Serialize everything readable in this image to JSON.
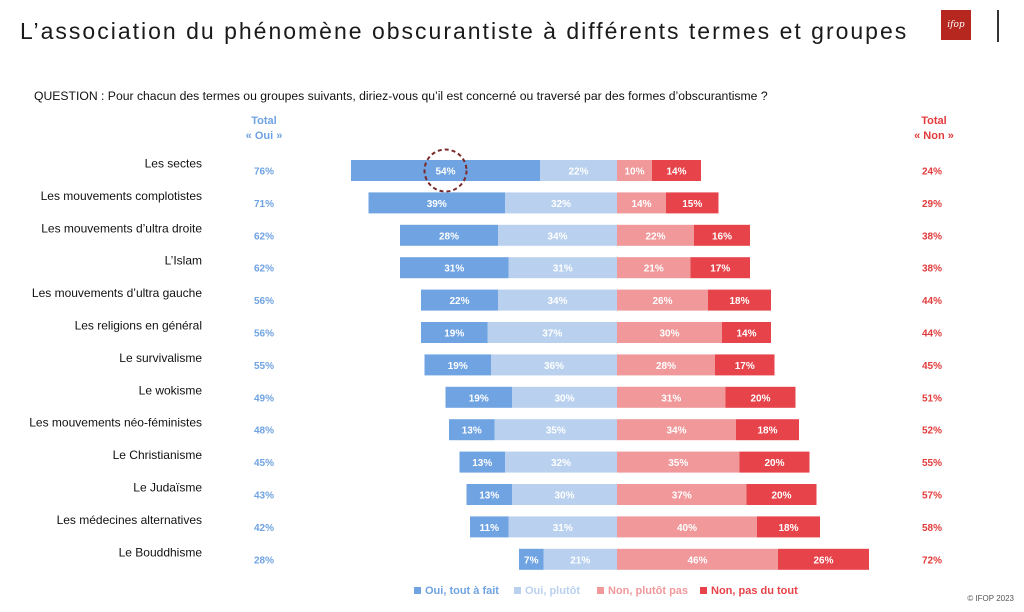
{
  "title": "L’association du phénomène obscurantiste à différents termes et groupes",
  "question": "QUESTION : Pour chacun des termes ou groupes suivants, diriez-vous qu’il est concerné ou traversé par des formes d’obscurantisme ?",
  "logo_text": "ifop",
  "copyright": "© IFOP 2023",
  "colors": {
    "oui_tout": "#6fa3e2",
    "oui_plutot": "#b9d1ef",
    "non_plutot": "#f0989a",
    "non_pas": "#e6434a",
    "total_oui_text": "#6fa3e2",
    "total_non_text": "#e23b3b",
    "highlight_circle": "#7a2a2a"
  },
  "chart_data": {
    "type": "bar",
    "stacked": "diverging",
    "categories": [
      "Les sectes",
      "Les mouvements complotistes",
      "Les mouvements d’ultra droite",
      "L’Islam",
      "Les mouvements d’ultra gauche",
      "Les religions en général",
      "Le survivalisme",
      "Le wokisme",
      "Les mouvements néo-féministes",
      "Le Christianisme",
      "Le Judaïsme",
      "Les médecines alternatives",
      "Le Bouddhisme"
    ],
    "series": [
      {
        "name": "Oui, tout à fait",
        "values": [
          54,
          39,
          28,
          31,
          22,
          19,
          19,
          19,
          13,
          13,
          13,
          11,
          7
        ]
      },
      {
        "name": "Oui, plutôt",
        "values": [
          22,
          32,
          34,
          31,
          34,
          37,
          36,
          30,
          35,
          32,
          30,
          31,
          21
        ]
      },
      {
        "name": "Non, plutôt pas",
        "values": [
          10,
          14,
          22,
          21,
          26,
          30,
          28,
          31,
          34,
          35,
          37,
          40,
          46
        ]
      },
      {
        "name": "Non, pas du tout",
        "values": [
          14,
          15,
          16,
          17,
          18,
          14,
          17,
          20,
          18,
          20,
          20,
          18,
          26
        ]
      }
    ],
    "total_oui_header": [
      "Total",
      "« Oui »"
    ],
    "total_non_header": [
      "Total",
      "« Non »"
    ],
    "total_oui": [
      76,
      71,
      62,
      62,
      56,
      56,
      55,
      49,
      48,
      45,
      43,
      42,
      28
    ],
    "total_non": [
      24,
      29,
      38,
      38,
      44,
      44,
      45,
      51,
      52,
      55,
      57,
      58,
      72
    ],
    "value_suffix": "%",
    "highlight": {
      "category": "Les sectes",
      "series": "Oui, tout à fait"
    },
    "legend_position": "bottom-right"
  }
}
